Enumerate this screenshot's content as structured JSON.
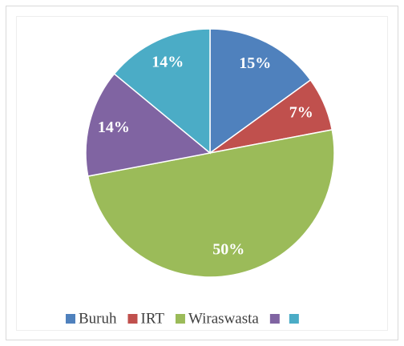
{
  "chart_data": {
    "type": "pie",
    "categories": [
      "Buruh",
      "IRT",
      "Wiraswasta",
      null,
      null
    ],
    "values": [
      15,
      7,
      50,
      14,
      14
    ],
    "value_labels": [
      "15%",
      "7%",
      "50%",
      "14%",
      "14%"
    ],
    "colors": [
      "#4f81bd",
      "#c0504d",
      "#9bbb59",
      "#8064a2",
      "#4bacc6"
    ],
    "legend": "bottom"
  }
}
